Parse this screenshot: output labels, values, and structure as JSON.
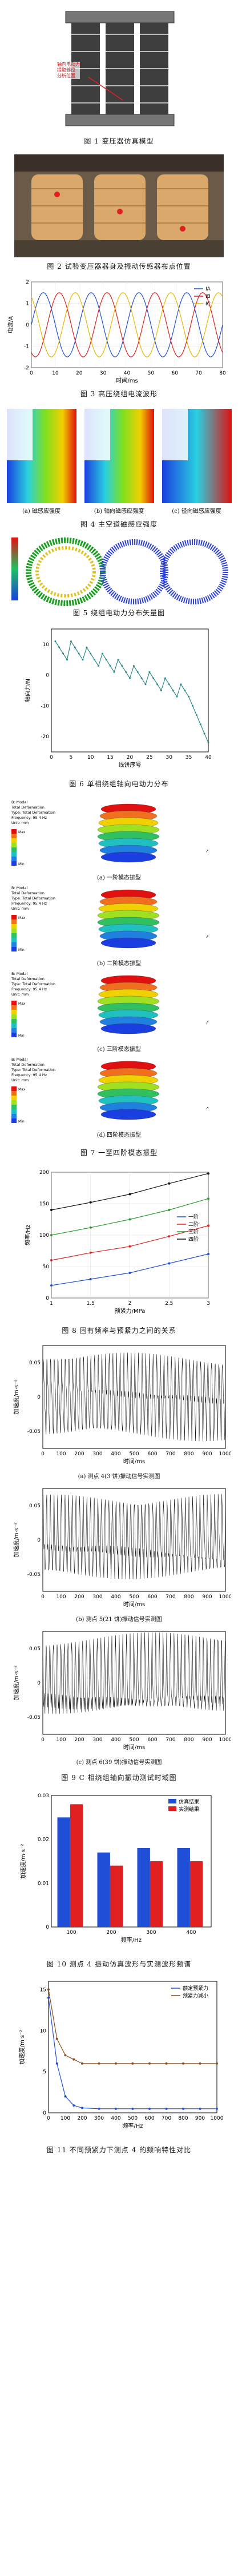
{
  "figures": {
    "fig1": {
      "caption": "图 1 变压器仿真模型",
      "annotation": "轴向电动力\n提取部位\n分析位置"
    },
    "fig2": {
      "caption": "图 2 试验变压器器身及振动传感器布点位置"
    },
    "fig3": {
      "caption": "图 3 高压绕组电流波形",
      "chart_data": {
        "type": "line",
        "xlabel": "时间/ms",
        "ylabel": "电流/A",
        "xlim": [
          0,
          80
        ],
        "ylim": [
          -2,
          2
        ],
        "x_ticks": [
          "0",
          "10",
          "20",
          "30",
          "40",
          "50",
          "60",
          "70",
          "80"
        ],
        "y_ticks": [
          "-2",
          "-1",
          "0",
          "1",
          "2"
        ],
        "series": [
          {
            "name": "IA",
            "color": "#1f4fd6",
            "amplitude": 1.5,
            "period_ms": 20,
            "phase_deg": 0
          },
          {
            "name": "IB",
            "color": "#e02020",
            "amplitude": 1.5,
            "period_ms": 20,
            "phase_deg": -120
          },
          {
            "name": "IC",
            "color": "#e6b800",
            "amplitude": 1.5,
            "period_ms": 20,
            "phase_deg": 120
          }
        ]
      }
    },
    "fig4": {
      "caption": "图 4 主空道磁感应强度",
      "subcaptions": [
        "(a) 磁感应强度",
        "(b) 轴向磁感应强度",
        "(c) 径向磁感应强度"
      ]
    },
    "fig5": {
      "caption": "图 5 绕组电动力分布矢量图"
    },
    "fig6": {
      "caption": "图 6 单相绕组轴向电动力分布",
      "chart_data": {
        "type": "line",
        "xlabel": "线饼序号",
        "ylabel": "轴向力/N",
        "xlim": [
          0,
          40
        ],
        "ylim": [
          -25,
          15
        ],
        "x_ticks": [
          "0",
          "5",
          "10",
          "15",
          "20",
          "25",
          "30",
          "35",
          "40"
        ],
        "y_ticks": [
          "-20",
          "-10",
          "0",
          "10"
        ],
        "x": [
          1,
          2,
          3,
          4,
          5,
          6,
          7,
          8,
          9,
          10,
          11,
          12,
          13,
          14,
          15,
          16,
          17,
          18,
          19,
          20,
          21,
          22,
          23,
          24,
          25,
          26,
          27,
          28,
          29,
          30,
          31,
          32,
          33,
          34,
          35,
          36,
          37,
          38,
          39,
          40
        ],
        "values": [
          11,
          9,
          7,
          5,
          11,
          9,
          7,
          5,
          9,
          7,
          5,
          3,
          7,
          5,
          3,
          1,
          5,
          3,
          1,
          -1,
          3,
          1,
          -1,
          -3,
          1,
          -1,
          -3,
          -5,
          -1,
          -3,
          -5,
          -7,
          -3,
          -5,
          -7,
          -10,
          -13,
          -16,
          -19,
          -22
        ]
      }
    },
    "fig7": {
      "caption": "图 7 一至四阶模态振型",
      "subcaptions": [
        "(a) 一阶模态振型",
        "(b) 二阶模态振型",
        "(c) 三阶模态振型",
        "(d) 四阶模态振型"
      ],
      "legend_header": "B: Modal\nTotal Deformation\nType: Total Deformation\nFrequency: 95.4 Hz\nUnit: mm",
      "legend_values": [
        "Max",
        "",
        "",
        "",
        "",
        "",
        "",
        "",
        "",
        "Min"
      ]
    },
    "fig8": {
      "caption": "图 8 固有频率与预紧力之间的关系",
      "chart_data": {
        "type": "line",
        "xlabel": "预紧力/MPa",
        "ylabel": "频率/Hz",
        "x": [
          1,
          1.5,
          2,
          2.5,
          3
        ],
        "xlim": [
          1,
          3
        ],
        "ylim": [
          0,
          200
        ],
        "x_ticks": [
          "1",
          "1.5",
          "2",
          "2.5",
          "3"
        ],
        "y_ticks": [
          "0",
          "50",
          "100",
          "150",
          "200"
        ],
        "series": [
          {
            "name": "一阶",
            "color": "#1f4fd6",
            "values": [
              20,
              30,
              40,
              55,
              70
            ]
          },
          {
            "name": "二阶",
            "color": "#e02020",
            "values": [
              60,
              72,
              82,
              98,
              115
            ]
          },
          {
            "name": "三阶",
            "color": "#2a9d2a",
            "values": [
              100,
              112,
              125,
              140,
              158
            ]
          },
          {
            "name": "四阶",
            "color": "#111111",
            "values": [
              140,
              152,
              165,
              182,
              198
            ]
          }
        ]
      }
    },
    "fig9": {
      "caption": "图 9 C 相绕组轴向振动测试时域图",
      "panels": [
        {
          "subcaption": "(a) 测点 4(3 饼)振动信号实测图",
          "ylabel": "加速度/m·s⁻²",
          "xlabel": "时间/ms",
          "y_ticks": [
            "0.05",
            "0",
            "-0.05"
          ],
          "x_ticks": [
            "0",
            "100",
            "200",
            "300",
            "400",
            "500",
            "600",
            "700",
            "800",
            "900",
            "1000"
          ]
        },
        {
          "subcaption": "(b) 测点 5(21 饼)振动信号实测图",
          "ylabel": "加速度/m·s⁻²",
          "xlabel": "时间/ms",
          "y_ticks": [
            "0.05",
            "0",
            "-0.05"
          ],
          "x_ticks": [
            "0",
            "100",
            "200",
            "300",
            "400",
            "500",
            "600",
            "700",
            "800",
            "900",
            "1000"
          ]
        },
        {
          "subcaption": "(c) 测点 6(39 饼)振动信号实测图",
          "ylabel": "加速度/m·s⁻²",
          "xlabel": "时间/ms",
          "y_ticks": [
            "0.05",
            "0",
            "-0.05"
          ],
          "x_ticks": [
            "0",
            "100",
            "200",
            "300",
            "400",
            "500",
            "600",
            "700",
            "800",
            "900",
            "1000"
          ]
        }
      ]
    },
    "fig10": {
      "caption": "图 10 测点 4 振动仿真波形与实测波形频谱",
      "chart_data": {
        "type": "bar",
        "categories": [
          "100",
          "200",
          "300",
          "400"
        ],
        "xlabel": "频率/Hz",
        "ylabel": "加速度/m·s⁻²",
        "ylim": [
          0,
          0.03
        ],
        "y_ticks": [
          "0",
          "0.01",
          "0.02",
          "0.03"
        ],
        "series": [
          {
            "name": "仿真结果",
            "color": "#1f4fd6",
            "values": [
              0.025,
              0.017,
              0.018,
              0.018
            ]
          },
          {
            "name": "实测结果",
            "color": "#e02020",
            "values": [
              0.028,
              0.014,
              0.015,
              0.015
            ]
          }
        ]
      }
    },
    "fig11": {
      "caption": "图 11 不同预紧力下测点 4 的频响特性对比",
      "chart_data": {
        "type": "line",
        "xlabel": "频率/Hz",
        "ylabel": "加速度/m·s⁻²",
        "xlim": [
          0,
          1000
        ],
        "ylim": [
          0,
          16
        ],
        "x_ticks": [
          "0",
          "100",
          "200",
          "300",
          "400",
          "500",
          "600",
          "700",
          "800",
          "900",
          "1000"
        ],
        "y_ticks": [
          "0",
          "5",
          "10",
          "15"
        ],
        "x": [
          0,
          50,
          100,
          150,
          200,
          300,
          400,
          500,
          600,
          700,
          800,
          900,
          1000
        ],
        "series": [
          {
            "name": "额定预紧力",
            "color": "#1f4fd6",
            "values": [
              14,
              6,
              2,
              0.9,
              0.6,
              0.5,
              0.5,
              0.5,
              0.5,
              0.5,
              0.5,
              0.5,
              0.5
            ]
          },
          {
            "name": "预紧力减小",
            "color": "#8a4a1a",
            "values": [
              15,
              9,
              7,
              6.5,
              6,
              6,
              6,
              6,
              6,
              6,
              6,
              6,
              6
            ]
          }
        ]
      }
    }
  }
}
